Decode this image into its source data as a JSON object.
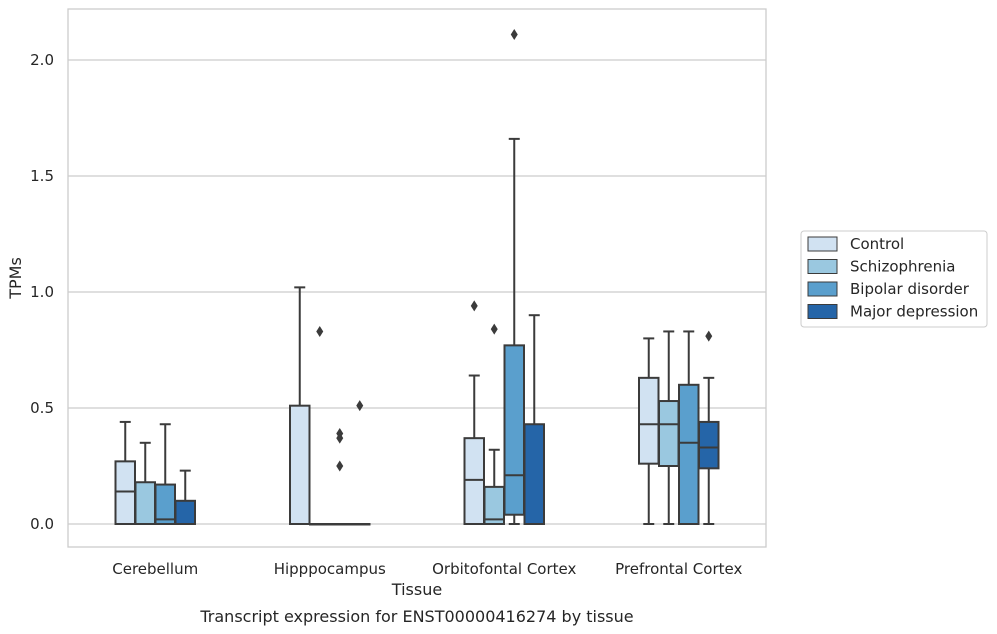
{
  "chart_data": {
    "type": "box",
    "title": "",
    "caption": "Transcript expression for ENST00000416274 by tissue",
    "xlabel": "Tissue",
    "ylabel": "TPMs",
    "ylim": [
      -0.1,
      2.22
    ],
    "yticks": [
      0.0,
      0.5,
      1.0,
      1.5,
      2.0
    ],
    "ytick_labels": [
      "0.0",
      "0.5",
      "1.0",
      "1.5",
      "2.0"
    ],
    "grid": true,
    "legend_position": "right",
    "categories": [
      "Cerebellum",
      "Hipppocampus",
      "Orbitofontal Cortex",
      "Prefrontal Cortex"
    ],
    "series": [
      {
        "name": "Control",
        "color": "#d1e2f2",
        "boxes": [
          {
            "whislo": 0.0,
            "q1": 0.0,
            "med": 0.14,
            "q3": 0.27,
            "whishi": 0.44,
            "fliers": []
          },
          {
            "whislo": 0.0,
            "q1": 0.0,
            "med": 0.0,
            "q3": 0.51,
            "whishi": 1.02,
            "fliers": []
          },
          {
            "whislo": 0.0,
            "q1": 0.0,
            "med": 0.19,
            "q3": 0.37,
            "whishi": 0.64,
            "fliers": [
              0.94
            ]
          },
          {
            "whislo": 0.0,
            "q1": 0.26,
            "med": 0.43,
            "q3": 0.63,
            "whishi": 0.8,
            "fliers": []
          }
        ]
      },
      {
        "name": "Schizophrenia",
        "color": "#9ac8e0",
        "boxes": [
          {
            "whislo": 0.0,
            "q1": 0.0,
            "med": 0.0,
            "q3": 0.18,
            "whishi": 0.35,
            "fliers": []
          },
          {
            "whislo": 0.0,
            "q1": 0.0,
            "med": 0.0,
            "q3": 0.0,
            "whishi": 0.0,
            "fliers": [
              0.83
            ]
          },
          {
            "whislo": 0.0,
            "q1": 0.0,
            "med": 0.02,
            "q3": 0.16,
            "whishi": 0.32,
            "fliers": [
              0.84
            ]
          },
          {
            "whislo": 0.0,
            "q1": 0.25,
            "med": 0.43,
            "q3": 0.53,
            "whishi": 0.83,
            "fliers": []
          }
        ]
      },
      {
        "name": "Bipolar disorder",
        "color": "#5a9fcd",
        "boxes": [
          {
            "whislo": 0.0,
            "q1": 0.0,
            "med": 0.02,
            "q3": 0.17,
            "whishi": 0.43,
            "fliers": []
          },
          {
            "whislo": 0.0,
            "q1": 0.0,
            "med": 0.0,
            "q3": 0.0,
            "whishi": 0.0,
            "fliers": [
              0.25,
              0.37,
              0.39
            ]
          },
          {
            "whislo": 0.0,
            "q1": 0.04,
            "med": 0.21,
            "q3": 0.77,
            "whishi": 1.66,
            "fliers": [
              2.11
            ]
          },
          {
            "whislo": 0.0,
            "q1": 0.0,
            "med": 0.35,
            "q3": 0.6,
            "whishi": 0.83,
            "fliers": []
          }
        ]
      },
      {
        "name": "Major depression",
        "color": "#2565a8",
        "boxes": [
          {
            "whislo": 0.0,
            "q1": 0.0,
            "med": 0.0,
            "q3": 0.1,
            "whishi": 0.23,
            "fliers": []
          },
          {
            "whislo": 0.0,
            "q1": 0.0,
            "med": 0.0,
            "q3": 0.0,
            "whishi": 0.0,
            "fliers": [
              0.51
            ]
          },
          {
            "whislo": 0.0,
            "q1": 0.0,
            "med": 0.0,
            "q3": 0.43,
            "whishi": 0.9,
            "fliers": []
          },
          {
            "whislo": 0.0,
            "q1": 0.24,
            "med": 0.33,
            "q3": 0.44,
            "whishi": 0.63,
            "fliers": [
              0.81
            ]
          }
        ]
      }
    ]
  }
}
